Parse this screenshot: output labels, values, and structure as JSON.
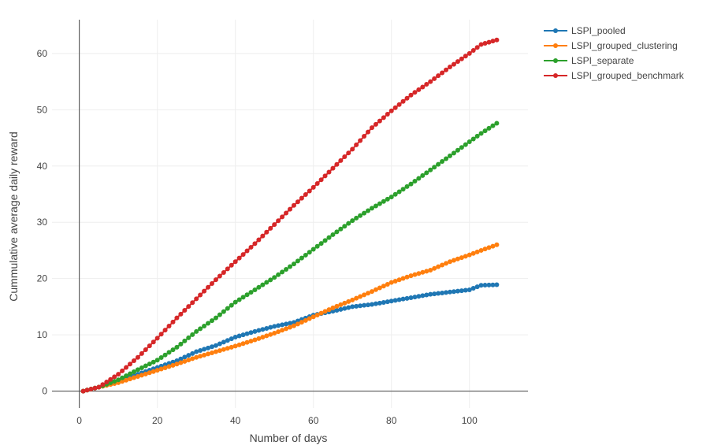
{
  "chart_data": {
    "type": "line",
    "title": "",
    "xlabel": "Number of days",
    "ylabel": "Cummulative average daily reward",
    "xlim": [
      -7,
      115
    ],
    "ylim": [
      -3,
      66
    ],
    "xticks": [
      0,
      20,
      40,
      60,
      80,
      100
    ],
    "yticks": [
      0,
      10,
      20,
      30,
      40,
      50,
      60
    ],
    "grid": true,
    "legend_position": "top-right",
    "markers": true,
    "series": [
      {
        "name": "LSPI_pooled",
        "color": "#1f77b4",
        "points": [
          [
            1,
            0
          ],
          [
            5,
            0.7
          ],
          [
            10,
            1.6
          ],
          [
            15,
            3.0
          ],
          [
            20,
            4.2
          ],
          [
            25,
            5.4
          ],
          [
            30,
            7.0
          ],
          [
            35,
            8.1
          ],
          [
            40,
            9.6
          ],
          [
            45,
            10.6
          ],
          [
            50,
            11.5
          ],
          [
            55,
            12.2
          ],
          [
            60,
            13.5
          ],
          [
            65,
            14.2
          ],
          [
            70,
            15.0
          ],
          [
            75,
            15.4
          ],
          [
            80,
            16.0
          ],
          [
            85,
            16.6
          ],
          [
            90,
            17.2
          ],
          [
            95,
            17.6
          ],
          [
            100,
            18.0
          ],
          [
            103,
            18.8
          ],
          [
            107,
            18.9
          ]
        ]
      },
      {
        "name": "LSPI_grouped_clustering",
        "color": "#ff7f0e",
        "points": [
          [
            1,
            0
          ],
          [
            5,
            0.7
          ],
          [
            10,
            1.5
          ],
          [
            15,
            2.6
          ],
          [
            20,
            3.7
          ],
          [
            25,
            4.8
          ],
          [
            30,
            6.0
          ],
          [
            35,
            7.0
          ],
          [
            40,
            8.0
          ],
          [
            45,
            9.1
          ],
          [
            50,
            10.3
          ],
          [
            55,
            11.6
          ],
          [
            60,
            13.2
          ],
          [
            65,
            14.8
          ],
          [
            70,
            16.2
          ],
          [
            75,
            17.7
          ],
          [
            80,
            19.3
          ],
          [
            85,
            20.5
          ],
          [
            90,
            21.5
          ],
          [
            95,
            23.0
          ],
          [
            100,
            24.2
          ],
          [
            103,
            25.0
          ],
          [
            107,
            26.0
          ]
        ]
      },
      {
        "name": "LSPI_separate",
        "color": "#2ca02c",
        "points": [
          [
            1,
            0
          ],
          [
            5,
            0.7
          ],
          [
            10,
            2.0
          ],
          [
            15,
            3.8
          ],
          [
            20,
            5.5
          ],
          [
            25,
            7.8
          ],
          [
            30,
            10.6
          ],
          [
            35,
            13.0
          ],
          [
            40,
            15.8
          ],
          [
            45,
            18.0
          ],
          [
            50,
            20.2
          ],
          [
            55,
            22.6
          ],
          [
            60,
            25.2
          ],
          [
            65,
            27.8
          ],
          [
            70,
            30.3
          ],
          [
            75,
            32.5
          ],
          [
            80,
            34.5
          ],
          [
            85,
            36.8
          ],
          [
            90,
            39.3
          ],
          [
            95,
            41.8
          ],
          [
            100,
            44.3
          ],
          [
            103,
            45.8
          ],
          [
            107,
            47.6
          ]
        ]
      },
      {
        "name": "LSPI_grouped_benchmark",
        "color": "#d62728",
        "points": [
          [
            1,
            0
          ],
          [
            5,
            0.7
          ],
          [
            10,
            3.0
          ],
          [
            15,
            6.0
          ],
          [
            20,
            9.4
          ],
          [
            25,
            13.0
          ],
          [
            30,
            16.4
          ],
          [
            35,
            19.8
          ],
          [
            40,
            23.0
          ],
          [
            45,
            26.2
          ],
          [
            50,
            29.6
          ],
          [
            55,
            33.0
          ],
          [
            60,
            36.2
          ],
          [
            65,
            39.6
          ],
          [
            70,
            43.0
          ],
          [
            75,
            46.8
          ],
          [
            80,
            49.8
          ],
          [
            85,
            52.6
          ],
          [
            90,
            55.0
          ],
          [
            95,
            57.6
          ],
          [
            100,
            60.0
          ],
          [
            103,
            61.6
          ],
          [
            107,
            62.4
          ]
        ]
      }
    ]
  }
}
